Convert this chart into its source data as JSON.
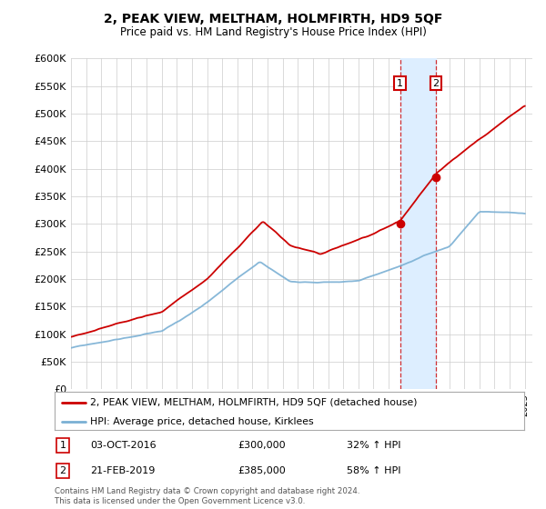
{
  "title": "2, PEAK VIEW, MELTHAM, HOLMFIRTH, HD9 5QF",
  "subtitle": "Price paid vs. HM Land Registry's House Price Index (HPI)",
  "ylabel_ticks": [
    "£0",
    "£50K",
    "£100K",
    "£150K",
    "£200K",
    "£250K",
    "£300K",
    "£350K",
    "£400K",
    "£450K",
    "£500K",
    "£550K",
    "£600K"
  ],
  "ytick_values": [
    0,
    50000,
    100000,
    150000,
    200000,
    250000,
    300000,
    350000,
    400000,
    450000,
    500000,
    550000,
    600000
  ],
  "xlim_start": 1995.0,
  "xlim_end": 2025.5,
  "ylim_min": 0,
  "ylim_max": 600000,
  "purchase1_date": "03-OCT-2016",
  "purchase1_x": 2016.75,
  "purchase1_price": 300000,
  "purchase1_hpi_pct": "32%",
  "purchase2_date": "21-FEB-2019",
  "purchase2_x": 2019.13,
  "purchase2_price": 385000,
  "purchase2_hpi_pct": "58%",
  "red_color": "#cc0000",
  "blue_color": "#7ab0d4",
  "highlight_bg_color": "#ddeeff",
  "grid_color": "#cccccc",
  "plot_bg_color": "#ffffff",
  "fig_bg_color": "#ffffff",
  "legend_label_red": "2, PEAK VIEW, MELTHAM, HOLMFIRTH, HD9 5QF (detached house)",
  "legend_label_blue": "HPI: Average price, detached house, Kirklees",
  "footer_text": "Contains HM Land Registry data © Crown copyright and database right 2024.\nThis data is licensed under the Open Government Licence v3.0."
}
